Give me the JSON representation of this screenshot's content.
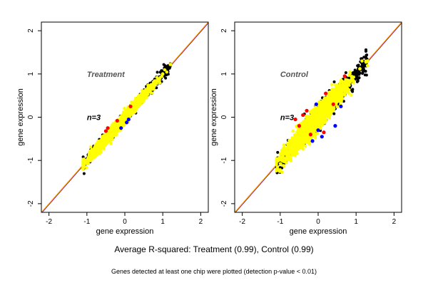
{
  "figure": {
    "caption": "Average R-squared: Treatment (0.99), Control (0.99)",
    "footnote": "Genes detected at least one chip were plotted (detection p-value < 0.01)"
  },
  "colors": {
    "points_main": "#ffff00",
    "points_red": "#ff0000",
    "points_blue": "#0000ff",
    "points_black": "#000000",
    "identity_line": "#ffa500",
    "fit_line_red": "#ff0000",
    "fit_line_blue": "#0000ff"
  },
  "chart_data": [
    {
      "type": "scatter",
      "title": "Treatment",
      "annotation": "n=3",
      "xlabel": "gene expression",
      "ylabel": "gene expression",
      "xlim": [
        -2.2,
        2.2
      ],
      "ylim": [
        -2.2,
        2.2
      ],
      "x_ticks": [
        -2,
        -1,
        0,
        1,
        2
      ],
      "y_ticks": [
        -2,
        -1,
        0,
        1,
        2
      ],
      "reference_line": "y = x",
      "cloud": {
        "x_range": [
          -1.1,
          1.2
        ],
        "spread": 0.06,
        "approx_points": 2400
      },
      "series": [
        {
          "color": "yellow",
          "x": [
            -1.08,
            -0.95,
            -0.7,
            -0.5,
            -0.3,
            -0.1,
            0.0,
            0.2,
            0.4,
            0.6,
            0.8,
            1.0,
            1.2
          ],
          "y": [
            -1.05,
            -0.96,
            -0.72,
            -0.5,
            -0.28,
            -0.08,
            0.02,
            0.2,
            0.42,
            0.58,
            0.8,
            1.0,
            1.22
          ]
        },
        {
          "color": "red",
          "x": [
            -0.5,
            -0.45,
            -0.2,
            0.15
          ],
          "y": [
            -0.32,
            -0.25,
            -0.08,
            0.25
          ]
        },
        {
          "color": "blue",
          "x": [
            -0.1,
            0.05,
            0.1
          ],
          "y": [
            -0.25,
            -0.12,
            -0.05
          ]
        }
      ]
    },
    {
      "type": "scatter",
      "title": "Control",
      "annotation": "n=3",
      "xlabel": "gene expression",
      "ylabel": "gene expression",
      "xlim": [
        -2.2,
        2.2
      ],
      "ylim": [
        -2.2,
        2.2
      ],
      "x_ticks": [
        -2,
        -1,
        0,
        1,
        2
      ],
      "y_ticks": [
        -2,
        -1,
        0,
        1,
        2
      ],
      "reference_line": "y = x",
      "cloud": {
        "x_range": [
          -1.1,
          1.3
        ],
        "spread": 0.12,
        "approx_points": 2400
      },
      "series": [
        {
          "color": "yellow",
          "x": [
            -1.05,
            -0.9,
            -0.7,
            -0.5,
            -0.3,
            -0.1,
            0.1,
            0.3,
            0.5,
            0.7,
            0.9,
            1.1,
            1.3
          ],
          "y": [
            -1.0,
            -0.85,
            -0.62,
            -0.55,
            -0.2,
            -0.12,
            0.1,
            0.35,
            0.48,
            0.72,
            0.88,
            1.12,
            1.3
          ]
        },
        {
          "color": "red",
          "x": [
            -0.6,
            -0.3,
            -0.4,
            -0.5,
            0.4,
            0.15,
            -0.2,
            0.2,
            0.7
          ],
          "y": [
            -0.05,
            0.15,
            0.05,
            -0.2,
            0.3,
            -0.35,
            -0.4,
            0.55,
            0.95
          ]
        },
        {
          "color": "blue",
          "x": [
            -0.15,
            0.0,
            0.1,
            0.45,
            0.6,
            -0.05
          ],
          "y": [
            -0.55,
            -0.3,
            -0.45,
            -0.2,
            0.25,
            0.3
          ]
        }
      ]
    }
  ]
}
